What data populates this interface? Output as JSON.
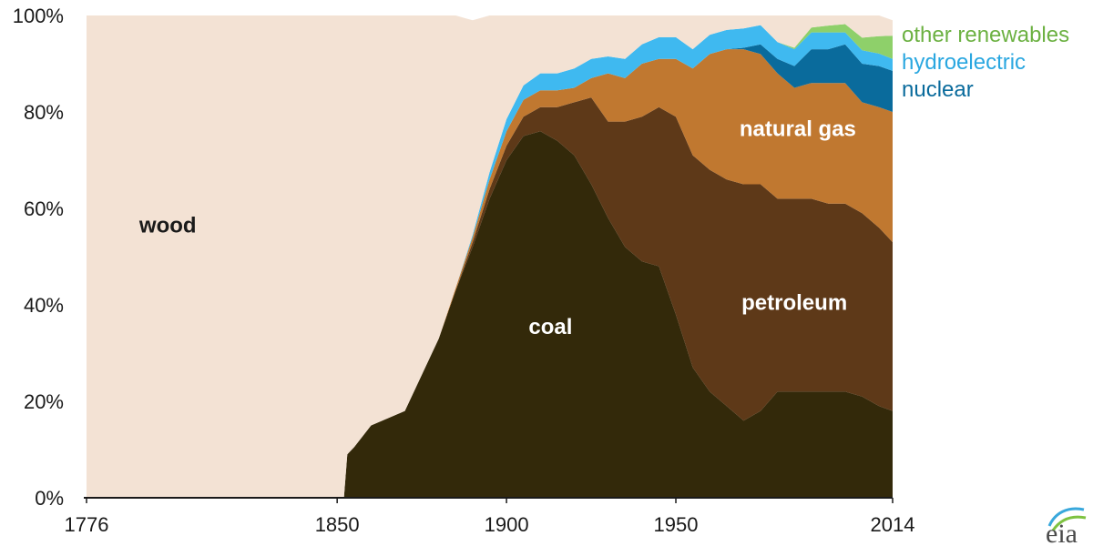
{
  "chart_data": {
    "type": "area",
    "stacked": true,
    "percent": true,
    "x": [
      1776,
      1850,
      1851,
      1852,
      1853,
      1855,
      1860,
      1870,
      1880,
      1885,
      1890,
      1895,
      1900,
      1905,
      1910,
      1915,
      1920,
      1925,
      1930,
      1935,
      1940,
      1945,
      1950,
      1955,
      1960,
      1965,
      1970,
      1975,
      1980,
      1985,
      1990,
      1995,
      2000,
      2005,
      2010,
      2014
    ],
    "series": [
      {
        "name": "coal",
        "key": "coal",
        "color": "#33290a",
        "label_color": "#ffffff",
        "values": [
          0,
          0,
          0,
          0,
          9,
          10.5,
          15,
          18,
          33,
          43,
          52,
          62,
          70,
          75,
          76,
          74,
          71,
          65,
          58,
          52,
          49,
          48,
          38,
          27,
          22,
          19,
          16,
          18,
          22,
          22,
          22,
          22,
          22,
          21,
          19,
          18
        ]
      },
      {
        "name": "petroleum",
        "key": "petroleum",
        "color": "#5e3918",
        "label_color": "#ffffff",
        "values": [
          0,
          0,
          0,
          0,
          0,
          0,
          0,
          0,
          0,
          0,
          1,
          2,
          3,
          4,
          5,
          7,
          11,
          18,
          20,
          26,
          30,
          33,
          41,
          44,
          46,
          47,
          49,
          47,
          40,
          40,
          40,
          39,
          39,
          38,
          37,
          35
        ]
      },
      {
        "name": "natural gas",
        "key": "gas",
        "color": "#c07830",
        "label_color": "#ffffff",
        "values": [
          0,
          0,
          0,
          0,
          0,
          0,
          0,
          0,
          0,
          0.5,
          1,
          2,
          3,
          3.5,
          3.5,
          3.5,
          3,
          4,
          10,
          9,
          11,
          10,
          12,
          18,
          24,
          27,
          28,
          27,
          26,
          23,
          24,
          25,
          25,
          23,
          25,
          27
        ]
      },
      {
        "name": "nuclear",
        "key": "nuclear",
        "color": "#0a6b9c",
        "label_color": "#0a6b9c",
        "values": [
          0,
          0,
          0,
          0,
          0,
          0,
          0,
          0,
          0,
          0,
          0,
          0,
          0,
          0,
          0,
          0,
          0,
          0,
          0,
          0,
          0,
          0,
          0,
          0,
          0,
          0,
          0.3,
          2,
          3,
          4.5,
          7,
          7,
          8,
          8,
          8.5,
          8.5
        ]
      },
      {
        "name": "hydroelectric",
        "key": "hydro",
        "color": "#3fb9f0",
        "label_color": "#2aa7e0",
        "values": [
          0,
          0,
          0,
          0,
          0,
          0,
          0,
          0,
          0,
          0,
          0.5,
          1.5,
          2.5,
          3,
          3.5,
          3.5,
          4,
          4,
          3.5,
          4,
          4,
          4.5,
          4.5,
          4,
          4,
          4,
          4,
          4,
          3.5,
          3.5,
          3.5,
          3.5,
          2.5,
          2.8,
          2.6,
          2.5
        ]
      },
      {
        "name": "other renewables",
        "key": "other",
        "color": "#8ed06a",
        "label_color": "#6cb142",
        "values": [
          0,
          0,
          0,
          0,
          0,
          0,
          0,
          0,
          0,
          0,
          0,
          0,
          0,
          0,
          0,
          0,
          0,
          0,
          0,
          0,
          0,
          0,
          0,
          0,
          0,
          0,
          0,
          0,
          0,
          0.3,
          1,
          1.4,
          1.7,
          2.6,
          3.6,
          4.8
        ]
      },
      {
        "name": "wood",
        "key": "wood",
        "color": "#f3e2d4",
        "label_color": "#1a1a1a",
        "values": [
          100,
          100,
          100,
          100,
          91,
          89.5,
          85,
          82,
          67,
          56.5,
          44.5,
          32.5,
          21.5,
          14.5,
          12,
          12,
          11,
          9,
          8.5,
          9,
          6,
          4.5,
          4.5,
          7,
          4,
          3,
          2.7,
          2,
          5.5,
          6.7,
          2.5,
          2.1,
          1.8,
          4.6,
          4.3,
          3.2
        ]
      }
    ],
    "xlim": [
      1776,
      2014
    ],
    "ylim": [
      0,
      100
    ],
    "yticks": [
      "0%",
      "20%",
      "40%",
      "60%",
      "80%",
      "100%"
    ],
    "ytick_values": [
      0,
      20,
      40,
      60,
      80,
      100
    ],
    "xticks": [
      "1776",
      "1850",
      "1900",
      "1950",
      "2014"
    ],
    "xtick_values": [
      1776,
      1850,
      1900,
      1950,
      2014
    ],
    "area_labels": [
      {
        "key": "wood",
        "text": "wood",
        "x": 1800,
        "y": 55
      },
      {
        "key": "coal",
        "text": "coal",
        "x": 1913,
        "y": 34
      },
      {
        "key": "petroleum",
        "text": "petroleum",
        "x": 1985,
        "y": 39
      },
      {
        "key": "gas",
        "text": "natural gas",
        "x": 1986,
        "y": 75
      }
    ],
    "legend": [
      {
        "key": "other",
        "text": "other renewables"
      },
      {
        "key": "hydro",
        "text": "hydroelectric"
      },
      {
        "key": "nuclear",
        "text": "nuclear"
      }
    ],
    "legend_position": "right",
    "grid": false,
    "logo": "eia"
  }
}
